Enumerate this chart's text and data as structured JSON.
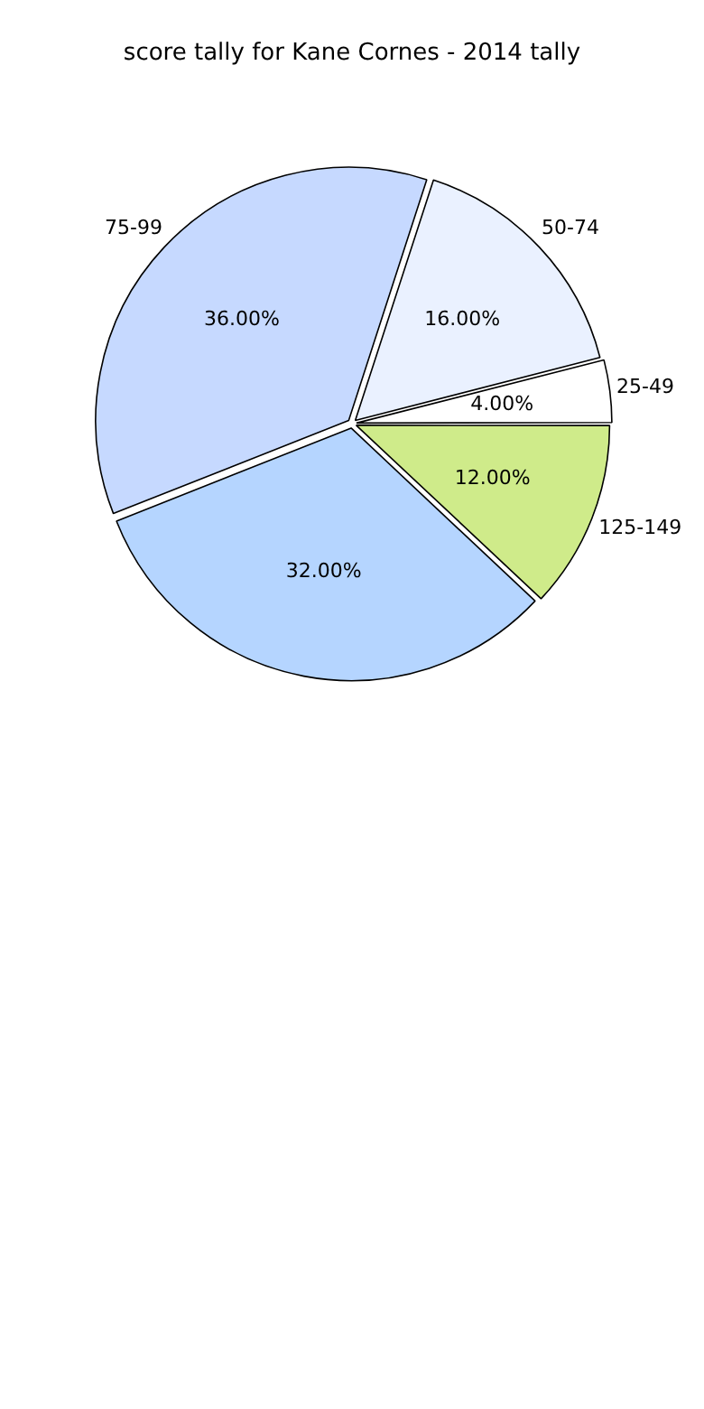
{
  "chart_data": {
    "type": "pie",
    "title": "score tally for Kane Cornes - 2014 tally",
    "categories": [
      "125-149",
      null,
      "75-99",
      "50-74",
      "25-49"
    ],
    "values": [
      12,
      32,
      36,
      16,
      4
    ],
    "colors": [
      "#cfeb8a",
      "#b5d5ff",
      "#c6d9ff",
      "#eaf1ff",
      "#ffffff"
    ],
    "value_labels": [
      "12.00%",
      "32.00%",
      "36.00%",
      "16.00%",
      "4.00%"
    ],
    "legend": false
  }
}
